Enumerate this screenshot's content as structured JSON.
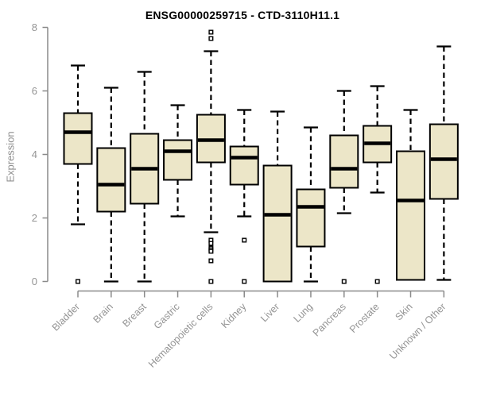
{
  "title": "ENSG00000259715 - CTD-3110H11.1",
  "colors": {
    "box_fill": "#ece6c8",
    "box_border": "#000000",
    "median": "#000000",
    "whisker": "#000000",
    "outlier_stroke": "#000000",
    "outlier_fill": "#ffffff",
    "axis": "#8a8a8a",
    "tick_text": "#949494",
    "title_text": "#000000",
    "background": "#ffffff"
  },
  "chart_data": {
    "type": "boxplot",
    "title": "ENSG00000259715 - CTD-3110H11.1",
    "xlabel": "",
    "ylabel": "Expression",
    "ylim": [
      0,
      8
    ],
    "yticks": [
      0,
      2,
      4,
      6,
      8
    ],
    "grid": false,
    "legend": "none",
    "categories": [
      "Bladder",
      "Brain",
      "Breast",
      "Gastric",
      "Hematopoietic cells",
      "Kidney",
      "Liver",
      "Lung",
      "Pancreas",
      "Prostate",
      "Skin",
      "Unknown / Other"
    ],
    "boxes": [
      {
        "name": "Bladder",
        "whisker_low": 1.8,
        "q1": 3.7,
        "median": 4.7,
        "q3": 5.3,
        "whisker_high": 6.8,
        "outliers": [
          0
        ]
      },
      {
        "name": "Brain",
        "whisker_low": 0,
        "q1": 2.2,
        "median": 3.05,
        "q3": 4.2,
        "whisker_high": 6.1,
        "outliers": []
      },
      {
        "name": "Breast",
        "whisker_low": 0,
        "q1": 2.45,
        "median": 3.55,
        "q3": 4.65,
        "whisker_high": 6.6,
        "outliers": []
      },
      {
        "name": "Gastric",
        "whisker_low": 2.05,
        "q1": 3.2,
        "median": 4.1,
        "q3": 4.45,
        "whisker_high": 5.55,
        "outliers": []
      },
      {
        "name": "Hematopoietic cells",
        "whisker_low": 1.55,
        "q1": 3.75,
        "median": 4.45,
        "q3": 5.25,
        "whisker_high": 7.25,
        "outliers": [
          7.85,
          7.65,
          1.3,
          1.2,
          1.05,
          1.0,
          0.95,
          0.65,
          0
        ]
      },
      {
        "name": "Kidney",
        "whisker_low": 2.05,
        "q1": 3.05,
        "median": 3.9,
        "q3": 4.25,
        "whisker_high": 5.4,
        "outliers": [
          1.3,
          0
        ]
      },
      {
        "name": "Liver",
        "whisker_low": 0,
        "q1": 0,
        "median": 2.1,
        "q3": 3.65,
        "whisker_high": 5.35,
        "outliers": []
      },
      {
        "name": "Lung",
        "whisker_low": 0,
        "q1": 1.1,
        "median": 2.35,
        "q3": 2.9,
        "whisker_high": 4.85,
        "outliers": []
      },
      {
        "name": "Pancreas",
        "whisker_low": 2.15,
        "q1": 2.95,
        "median": 3.55,
        "q3": 4.6,
        "whisker_high": 6.0,
        "outliers": [
          0
        ]
      },
      {
        "name": "Prostate",
        "whisker_low": 2.8,
        "q1": 3.75,
        "median": 4.35,
        "q3": 4.9,
        "whisker_high": 6.15,
        "outliers": [
          0
        ]
      },
      {
        "name": "Skin",
        "whisker_low": 0.05,
        "q1": 0.05,
        "median": 2.55,
        "q3": 4.1,
        "whisker_high": 5.4,
        "outliers": []
      },
      {
        "name": "Unknown / Other",
        "whisker_low": 0.05,
        "q1": 2.6,
        "median": 3.85,
        "q3": 4.95,
        "whisker_high": 7.4,
        "outliers": []
      }
    ]
  }
}
